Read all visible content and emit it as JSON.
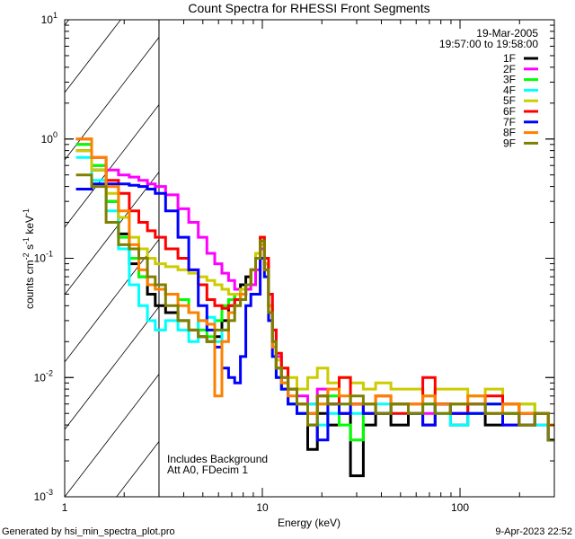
{
  "chart_data": {
    "type": "line",
    "title": "Count Spectra for RHESSI Front Segments",
    "xlabel": "Energy (keV)",
    "ylabel": "counts cm-2 s-1 keV-1",
    "xscale": "log",
    "yscale": "log",
    "xlim": [
      1,
      300
    ],
    "ylim": [
      0.001,
      10
    ],
    "x_tick_labels": [
      {
        "value": 1,
        "label": "1"
      },
      {
        "value": 10,
        "label": "10"
      },
      {
        "value": 100,
        "label": "100"
      }
    ],
    "y_tick_labels": [
      {
        "value": 10,
        "mantissa": "10",
        "exponent": "1"
      },
      {
        "value": 1,
        "mantissa": "10",
        "exponent": "0"
      },
      {
        "value": 0.1,
        "mantissa": "10",
        "exponent": "-1"
      },
      {
        "value": 0.01,
        "mantissa": "10",
        "exponent": "-2"
      },
      {
        "value": 0.001,
        "mantissa": "10",
        "exponent": "-3"
      }
    ],
    "hatched_region_kev": [
      1,
      3
    ],
    "legend_placement": "top-right",
    "legend_header": [
      "19-Mar-2005",
      "19:57:00 to 19:58:00"
    ],
    "annotations": [
      "Includes Background",
      "Att A0, FDecim 1"
    ],
    "x": [
      1.25,
      1.5,
      1.75,
      2.0,
      2.25,
      2.5,
      2.75,
      3.0,
      3.5,
      4,
      4.5,
      5,
      5.5,
      6,
      6.5,
      7,
      7.5,
      8,
      8.5,
      9,
      9.5,
      10,
      10.5,
      11,
      11.5,
      12,
      13,
      14,
      16,
      18,
      20,
      23,
      26,
      30,
      35,
      40,
      50,
      60,
      70,
      80,
      100,
      120,
      150,
      180,
      220,
      260,
      300
    ],
    "series": [
      {
        "name": "1F",
        "color": "#000000",
        "values": [
          0.8,
          0.55,
          0.3,
          0.16,
          0.09,
          0.07,
          0.05,
          0.04,
          0.035,
          0.03,
          0.025,
          0.022,
          0.02,
          0.022,
          0.03,
          0.04,
          0.05,
          0.06,
          0.07,
          0.08,
          0.1,
          0.14,
          0.09,
          0.04,
          0.02,
          0.012,
          0.008,
          0.006,
          0.005,
          0.0025,
          0.005,
          0.004,
          0.005,
          0.0015,
          0.004,
          0.005,
          0.004,
          0.005,
          0.004,
          0.006,
          0.004,
          0.005,
          0.004,
          0.005,
          0.004,
          0.005,
          0.003
        ]
      },
      {
        "name": "2F",
        "color": "#ff00ff",
        "values": [
          0.9,
          0.6,
          0.55,
          0.5,
          0.48,
          0.45,
          0.42,
          0.4,
          0.34,
          0.26,
          0.2,
          0.15,
          0.11,
          0.09,
          0.075,
          0.065,
          0.055,
          0.05,
          0.055,
          0.06,
          0.08,
          0.12,
          0.09,
          0.05,
          0.025,
          0.015,
          0.01,
          0.008,
          0.007,
          0.006,
          0.008,
          0.006,
          0.005,
          0.006,
          0.005,
          0.005,
          0.006,
          0.005,
          0.005,
          0.006,
          0.005,
          0.006,
          0.005,
          0.004,
          0.005,
          0.004,
          0.004
        ]
      },
      {
        "name": "3F",
        "color": "#00ff00",
        "values": [
          0.9,
          0.6,
          0.3,
          0.15,
          0.1,
          0.07,
          0.06,
          0.055,
          0.05,
          0.045,
          0.035,
          0.025,
          0.022,
          0.03,
          0.04,
          0.045,
          0.05,
          0.055,
          0.06,
          0.08,
          0.11,
          0.15,
          0.09,
          0.04,
          0.02,
          0.012,
          0.009,
          0.008,
          0.006,
          0.005,
          0.006,
          0.007,
          0.004,
          0.003,
          0.006,
          0.005,
          0.006,
          0.005,
          0.006,
          0.005,
          0.006,
          0.005,
          0.006,
          0.005,
          0.006,
          0.005,
          0.004
        ]
      },
      {
        "name": "4F",
        "color": "#00ffff",
        "values": [
          0.7,
          0.45,
          0.25,
          0.12,
          0.06,
          0.04,
          0.03,
          0.025,
          0.03,
          0.025,
          0.02,
          0.03,
          0.032,
          0.02,
          0.025,
          0.035,
          0.045,
          0.05,
          0.06,
          0.08,
          0.1,
          0.13,
          0.08,
          0.035,
          0.018,
          0.01,
          0.008,
          0.006,
          0.005,
          0.006,
          0.004,
          0.005,
          0.006,
          0.005,
          0.005,
          0.006,
          0.005,
          0.005,
          0.006,
          0.005,
          0.004,
          0.005,
          0.005,
          0.006,
          0.005,
          0.004,
          0.004
        ]
      },
      {
        "name": "5F",
        "color": "#cccc00",
        "values": [
          0.8,
          0.55,
          0.35,
          0.22,
          0.15,
          0.12,
          0.1,
          0.09,
          0.085,
          0.08,
          0.075,
          0.07,
          0.065,
          0.06,
          0.055,
          0.05,
          0.05,
          0.055,
          0.06,
          0.08,
          0.11,
          0.14,
          0.09,
          0.04,
          0.02,
          0.014,
          0.012,
          0.01,
          0.008,
          0.01,
          0.012,
          0.009,
          0.01,
          0.009,
          0.008,
          0.009,
          0.008,
          0.008,
          0.007,
          0.008,
          0.008,
          0.007,
          0.008,
          0.006,
          0.006,
          0.005,
          0.004
        ]
      },
      {
        "name": "6F",
        "color": "#ff0000",
        "values": [
          1.0,
          0.7,
          0.45,
          0.35,
          0.25,
          0.2,
          0.17,
          0.15,
          0.12,
          0.1,
          0.08,
          0.06,
          0.045,
          0.04,
          0.038,
          0.04,
          0.045,
          0.05,
          0.06,
          0.08,
          0.1,
          0.15,
          0.1,
          0.05,
          0.025,
          0.016,
          0.012,
          0.008,
          0.006,
          0.005,
          0.007,
          0.006,
          0.01,
          0.006,
          0.005,
          0.007,
          0.005,
          0.006,
          0.01,
          0.006,
          0.005,
          0.006,
          0.007,
          0.006,
          0.005,
          0.005,
          0.004
        ]
      },
      {
        "name": "7F",
        "color": "#0000ff",
        "values": [
          0.38,
          0.42,
          0.42,
          0.42,
          0.41,
          0.4,
          0.38,
          0.35,
          0.25,
          0.15,
          0.08,
          0.04,
          0.025,
          0.018,
          0.012,
          0.01,
          0.009,
          0.015,
          0.04,
          0.05,
          0.05,
          0.1,
          0.07,
          0.03,
          0.015,
          0.01,
          0.008,
          0.006,
          0.005,
          0.004,
          0.003,
          0.006,
          0.005,
          0.006,
          0.005,
          0.005,
          0.006,
          0.005,
          0.004,
          0.006,
          0.005,
          0.005,
          0.006,
          0.004,
          0.004,
          0.005,
          0.003
        ]
      },
      {
        "name": "8F",
        "color": "#ff8000",
        "values": [
          1.0,
          0.7,
          0.4,
          0.25,
          0.13,
          0.08,
          0.06,
          0.055,
          0.05,
          0.04,
          0.035,
          0.03,
          0.028,
          0.007,
          0.02,
          0.035,
          0.04,
          0.05,
          0.06,
          0.08,
          0.1,
          0.13,
          0.08,
          0.035,
          0.018,
          0.012,
          0.009,
          0.007,
          0.006,
          0.005,
          0.006,
          0.008,
          0.007,
          0.006,
          0.006,
          0.007,
          0.006,
          0.006,
          0.007,
          0.006,
          0.006,
          0.007,
          0.005,
          0.006,
          0.005,
          0.005,
          0.004
        ]
      },
      {
        "name": "9F",
        "color": "#808000",
        "values": [
          0.5,
          0.4,
          0.2,
          0.13,
          0.12,
          0.1,
          0.07,
          0.06,
          0.04,
          0.03,
          0.025,
          0.022,
          0.02,
          0.025,
          0.025,
          0.03,
          0.04,
          0.045,
          0.06,
          0.08,
          0.1,
          0.14,
          0.08,
          0.035,
          0.02,
          0.012,
          0.01,
          0.008,
          0.006,
          0.004,
          0.007,
          0.006,
          0.006,
          0.007,
          0.006,
          0.005,
          0.006,
          0.005,
          0.006,
          0.005,
          0.006,
          0.006,
          0.005,
          0.005,
          0.004,
          0.005,
          0.003
        ]
      }
    ]
  },
  "footer": {
    "generated_by": "Generated by hsi_min_spectra_plot.pro",
    "timestamp": "9-Apr-2023 22:52"
  }
}
